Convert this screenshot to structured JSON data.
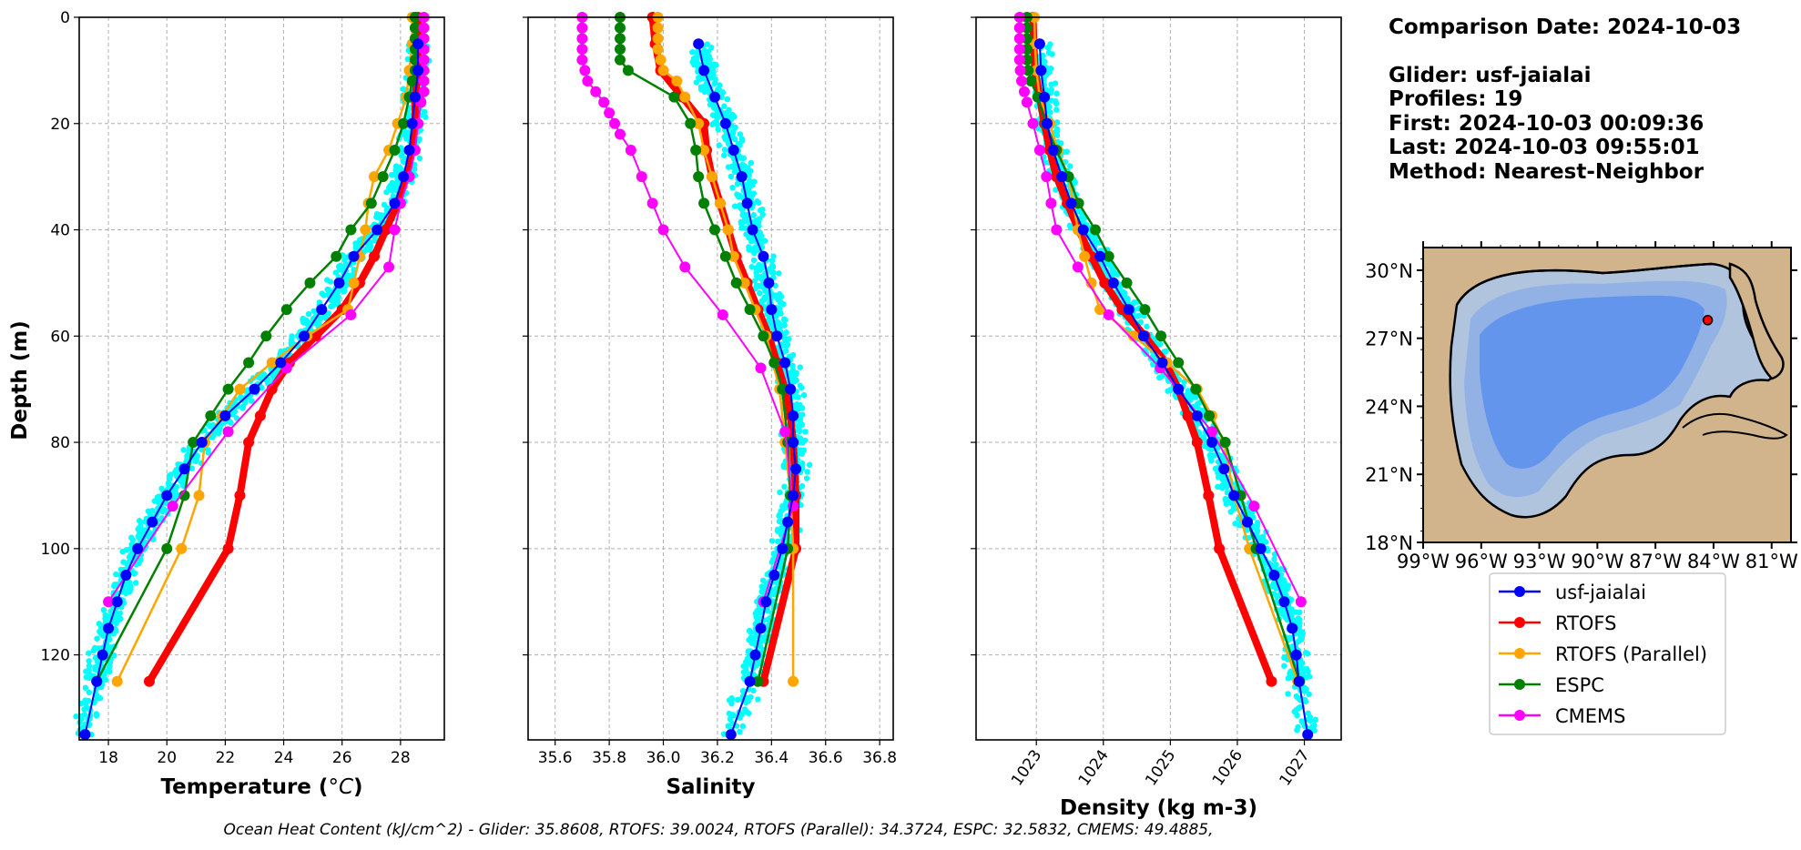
{
  "info": {
    "comparison": "Comparison Date: 2024-10-03",
    "glider": "Glider: usf-jaialai",
    "profiles": "Profiles: 19",
    "first": "First: 2024-10-03 00:09:36",
    "last": "Last: 2024-10-03 09:55:01",
    "method": "Method: Nearest-Neighbor"
  },
  "footnote": "Ocean Heat Content (kJ/cm^2) - Glider: 35.8608,  RTOFS: 39.0024,  RTOFS (Parallel): 34.3724,  ESPC: 32.5832,  CMEMS: 49.4885,",
  "colors": {
    "usf-jaialai": "#0000ff",
    "RTOFS": "#ff0000",
    "RTOFS (Parallel)": "#ffa500",
    "ESPC": "#008000",
    "CMEMS": "#ff00ff",
    "glider_points": "#00ffff",
    "map_land": "#d2b48c",
    "map_shelf": "#b0c4de",
    "map_mid": "#92b2e6",
    "map_deep": "#6495ed"
  },
  "legend": [
    "usf-jaialai",
    "RTOFS",
    "RTOFS (Parallel)",
    "ESPC",
    "CMEMS"
  ],
  "map": {
    "lat_labels": [
      "30°N",
      "27°N",
      "24°N",
      "21°N",
      "18°N"
    ],
    "lon_labels": [
      "99°W",
      "96°W",
      "93°W",
      "90°W",
      "87°W",
      "84°W",
      "81°W"
    ],
    "extent": {
      "lon": [
        -99,
        -80
      ],
      "lat": [
        18,
        31
      ]
    },
    "glider_position": {
      "lon": -84.3,
      "lat": 27.8
    },
    "marker_icon": "red-dot-icon"
  },
  "chart_data": [
    {
      "type": "line",
      "xlabel": "Temperature (°C)",
      "ylabel": "Depth (m)",
      "xlim": [
        17,
        29.5
      ],
      "ylim": [
        136,
        0
      ],
      "xticks": [
        "18",
        "20",
        "22",
        "24",
        "26",
        "28"
      ],
      "yticks": [
        "0",
        "20",
        "40",
        "60",
        "80",
        "100",
        "120"
      ],
      "grid": true,
      "series": [
        {
          "name": "usf-jaialai",
          "depth": [
            5,
            10,
            15,
            20,
            25,
            30,
            35,
            40,
            45,
            50,
            55,
            60,
            65,
            70,
            75,
            80,
            85,
            90,
            95,
            100,
            105,
            110,
            115,
            120,
            125,
            135
          ],
          "values": [
            28.6,
            28.6,
            28.5,
            28.4,
            28.3,
            28.1,
            27.8,
            27.2,
            26.4,
            25.9,
            25.3,
            24.7,
            23.9,
            23.0,
            22.0,
            21.2,
            20.6,
            20.0,
            19.5,
            19.0,
            18.6,
            18.3,
            18.0,
            17.8,
            17.6,
            17.2
          ]
        },
        {
          "name": "RTOFS",
          "depth": [
            0,
            5,
            10,
            15,
            20,
            25,
            30,
            35,
            40,
            45,
            50,
            55,
            60,
            65,
            70,
            75,
            80,
            90,
            100,
            125
          ],
          "values": [
            28.6,
            28.6,
            28.6,
            28.5,
            28.5,
            28.4,
            28.2,
            27.9,
            27.5,
            27.1,
            26.6,
            26.0,
            25.1,
            24.2,
            23.6,
            23.2,
            22.8,
            22.5,
            22.1,
            19.4
          ]
        },
        {
          "name": "RTOFS (Parallel)",
          "depth": [
            0,
            5,
            10,
            15,
            20,
            25,
            30,
            35,
            40,
            45,
            50,
            55,
            60,
            65,
            70,
            75,
            80,
            90,
            100,
            125
          ],
          "values": [
            28.4,
            28.4,
            28.3,
            28.2,
            27.9,
            27.6,
            27.1,
            26.9,
            26.8,
            26.6,
            26.4,
            26.2,
            24.8,
            23.6,
            22.5,
            21.9,
            21.3,
            21.1,
            20.5,
            18.3
          ]
        },
        {
          "name": "ESPC",
          "depth": [
            0,
            2,
            4,
            6,
            8,
            10,
            12,
            15,
            20,
            25,
            30,
            35,
            40,
            45,
            50,
            55,
            60,
            65,
            70,
            75,
            80,
            90,
            100,
            125
          ],
          "values": [
            28.5,
            28.5,
            28.5,
            28.5,
            28.5,
            28.5,
            28.4,
            28.3,
            28.1,
            27.8,
            27.4,
            27.0,
            26.3,
            25.8,
            24.9,
            24.1,
            23.4,
            22.8,
            22.1,
            21.5,
            20.9,
            20.6,
            20.0,
            17.6
          ]
        },
        {
          "name": "CMEMS",
          "depth": [
            0,
            2,
            4,
            6,
            8,
            10,
            12,
            14,
            16,
            20,
            25,
            30,
            35,
            40,
            47,
            56,
            66,
            78,
            92,
            110
          ],
          "values": [
            28.8,
            28.8,
            28.8,
            28.8,
            28.8,
            28.8,
            28.8,
            28.8,
            28.7,
            28.6,
            28.5,
            28.3,
            28.0,
            27.8,
            27.6,
            26.3,
            24.1,
            22.1,
            20.2,
            18.0
          ]
        }
      ]
    },
    {
      "type": "line",
      "xlabel": "Salinity",
      "xlim": [
        35.5,
        36.85
      ],
      "ylim": [
        136,
        0
      ],
      "xticks": [
        "35.6",
        "35.8",
        "36.0",
        "36.2",
        "36.4",
        "36.6",
        "36.8"
      ],
      "grid": true,
      "series": [
        {
          "name": "usf-jaialai",
          "depth": [
            5,
            10,
            15,
            20,
            25,
            30,
            35,
            40,
            45,
            50,
            55,
            60,
            65,
            70,
            75,
            80,
            85,
            90,
            95,
            100,
            105,
            110,
            115,
            120,
            125,
            135
          ],
          "values": [
            36.13,
            36.15,
            36.19,
            36.23,
            36.26,
            36.29,
            36.31,
            36.33,
            36.37,
            36.39,
            36.4,
            36.42,
            36.45,
            36.47,
            36.48,
            36.48,
            36.49,
            36.48,
            36.46,
            36.44,
            36.41,
            36.38,
            36.36,
            36.34,
            36.32,
            36.25
          ]
        },
        {
          "name": "RTOFS",
          "depth": [
            0,
            5,
            10,
            15,
            20,
            25,
            30,
            35,
            40,
            45,
            50,
            55,
            60,
            65,
            70,
            75,
            80,
            90,
            100,
            125
          ],
          "values": [
            35.96,
            35.97,
            35.99,
            36.07,
            36.15,
            36.16,
            36.18,
            36.21,
            36.24,
            36.27,
            36.31,
            36.35,
            36.39,
            36.42,
            36.45,
            36.47,
            36.48,
            36.49,
            36.49,
            36.37
          ]
        },
        {
          "name": "RTOFS (Parallel)",
          "depth": [
            0,
            2,
            4,
            6,
            8,
            10,
            12,
            15,
            20,
            25,
            30,
            35,
            40,
            45,
            50,
            55,
            60,
            70,
            80,
            90,
            100,
            125
          ],
          "values": [
            35.98,
            35.98,
            35.98,
            35.98,
            35.99,
            36.0,
            36.05,
            36.08,
            36.13,
            36.15,
            36.18,
            36.21,
            36.24,
            36.26,
            36.3,
            36.34,
            36.38,
            36.43,
            36.45,
            36.47,
            36.48,
            36.48
          ]
        },
        {
          "name": "ESPC",
          "depth": [
            0,
            2,
            4,
            6,
            8,
            10,
            15,
            20,
            25,
            30,
            35,
            40,
            45,
            50,
            55,
            60,
            65,
            70,
            80,
            90,
            100,
            125
          ],
          "values": [
            35.84,
            35.84,
            35.84,
            35.84,
            35.84,
            35.87,
            36.04,
            36.1,
            36.12,
            36.13,
            36.15,
            36.19,
            36.23,
            36.27,
            36.32,
            36.37,
            36.41,
            36.44,
            36.46,
            36.47,
            36.46,
            36.35
          ]
        },
        {
          "name": "CMEMS",
          "depth": [
            0,
            2,
            4,
            6,
            8,
            10,
            12,
            14,
            16,
            18,
            20,
            22,
            25,
            30,
            35,
            40,
            47,
            56,
            66,
            78,
            92,
            110
          ],
          "values": [
            35.7,
            35.7,
            35.7,
            35.7,
            35.7,
            35.71,
            35.72,
            35.75,
            35.78,
            35.8,
            35.82,
            35.84,
            35.88,
            35.92,
            35.96,
            36.0,
            36.08,
            36.22,
            36.36,
            36.45,
            36.48,
            36.37
          ]
        }
      ]
    },
    {
      "type": "line",
      "xlabel": "Density (kg m-3)",
      "xlim": [
        1022.1,
        1027.55
      ],
      "ylim": [
        136,
        0
      ],
      "xticks": [
        "1023",
        "1024",
        "1025",
        "1026",
        "1027"
      ],
      "grid": true,
      "series": [
        {
          "name": "usf-jaialai",
          "depth": [
            5,
            10,
            15,
            20,
            25,
            30,
            35,
            40,
            45,
            50,
            55,
            60,
            65,
            70,
            75,
            80,
            85,
            90,
            95,
            100,
            105,
            110,
            115,
            120,
            125,
            135
          ],
          "values": [
            1023.05,
            1023.07,
            1023.12,
            1023.16,
            1023.25,
            1023.38,
            1023.52,
            1023.7,
            1023.95,
            1024.15,
            1024.38,
            1024.6,
            1024.88,
            1025.12,
            1025.4,
            1025.62,
            1025.8,
            1025.95,
            1026.15,
            1026.35,
            1026.55,
            1026.7,
            1026.82,
            1026.88,
            1026.92,
            1027.05
          ]
        },
        {
          "name": "RTOFS",
          "depth": [
            0,
            5,
            10,
            15,
            20,
            25,
            30,
            35,
            40,
            45,
            50,
            55,
            60,
            65,
            70,
            75,
            80,
            90,
            100,
            125
          ],
          "values": [
            1022.95,
            1022.96,
            1022.98,
            1023.05,
            1023.12,
            1023.2,
            1023.3,
            1023.46,
            1023.63,
            1023.82,
            1024.02,
            1024.28,
            1024.62,
            1024.93,
            1025.12,
            1025.26,
            1025.4,
            1025.57,
            1025.73,
            1026.51
          ]
        },
        {
          "name": "RTOFS (Parallel)",
          "depth": [
            0,
            5,
            10,
            15,
            20,
            25,
            30,
            35,
            40,
            45,
            50,
            55,
            60,
            65,
            70,
            75,
            80,
            90,
            100,
            125
          ],
          "values": [
            1022.97,
            1022.98,
            1023.0,
            1023.05,
            1023.2,
            1023.32,
            1023.48,
            1023.55,
            1023.62,
            1023.72,
            1023.82,
            1023.95,
            1024.45,
            1024.95,
            1025.4,
            1025.62,
            1025.8,
            1025.95,
            1026.18,
            1026.9
          ]
        },
        {
          "name": "ESPC",
          "depth": [
            0,
            2,
            4,
            6,
            8,
            10,
            12,
            15,
            20,
            25,
            30,
            35,
            40,
            45,
            50,
            55,
            60,
            65,
            70,
            75,
            80,
            90,
            100,
            125
          ],
          "values": [
            1022.86,
            1022.86,
            1022.86,
            1022.86,
            1022.86,
            1022.88,
            1022.92,
            1023.02,
            1023.14,
            1023.3,
            1023.48,
            1023.63,
            1023.88,
            1024.08,
            1024.35,
            1024.62,
            1024.86,
            1025.12,
            1025.38,
            1025.58,
            1025.82,
            1026.05,
            1026.28,
            1026.93
          ]
        },
        {
          "name": "CMEMS",
          "depth": [
            0,
            2,
            4,
            6,
            8,
            10,
            12,
            14,
            16,
            20,
            25,
            30,
            35,
            40,
            47,
            56,
            66,
            78,
            92,
            110
          ],
          "values": [
            1022.75,
            1022.75,
            1022.75,
            1022.75,
            1022.75,
            1022.76,
            1022.78,
            1022.82,
            1022.86,
            1022.95,
            1023.05,
            1023.15,
            1023.22,
            1023.3,
            1023.62,
            1024.08,
            1024.85,
            1025.62,
            1026.25,
            1026.95
          ]
        }
      ]
    }
  ]
}
